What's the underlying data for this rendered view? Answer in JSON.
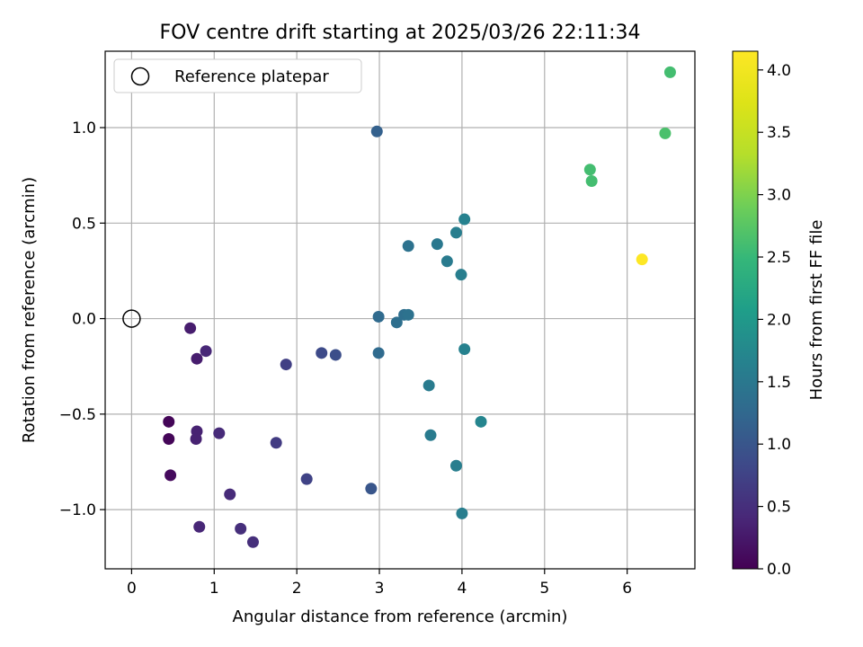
{
  "chart_data": {
    "type": "scatter",
    "title": "FOV centre drift starting at 2025/03/26 22:11:34",
    "xlabel": "Angular distance from reference (arcmin)",
    "ylabel": "Rotation from reference (arcmin)",
    "xlim": [
      -0.32,
      6.82
    ],
    "ylim": [
      -1.31,
      1.4
    ],
    "xticks": [
      "0",
      "1",
      "2",
      "3",
      "4",
      "5",
      "6"
    ],
    "xtick_values": [
      0,
      1,
      2,
      3,
      4,
      5,
      6
    ],
    "yticks": [
      "−1.0",
      "−0.5",
      "0.0",
      "0.5",
      "1.0"
    ],
    "ytick_values": [
      -1.0,
      -0.5,
      0.0,
      0.5,
      1.0
    ],
    "grid": true,
    "legend": {
      "position": "top-left",
      "label": "Reference platepar"
    },
    "reference_point": {
      "x": 0,
      "y": 0
    },
    "colorbar": {
      "label": "Hours from first FF file",
      "range": [
        0,
        4.15
      ],
      "ticks": [
        "0.0",
        "0.5",
        "1.0",
        "1.5",
        "2.0",
        "2.5",
        "3.0",
        "3.5",
        "4.0"
      ],
      "tick_values": [
        0,
        0.5,
        1.0,
        1.5,
        2.0,
        2.5,
        3.0,
        3.5,
        4.0
      ],
      "colormap": "viridis"
    },
    "points": [
      {
        "x": 0.45,
        "y": -0.54,
        "c": 0.05
      },
      {
        "x": 0.45,
        "y": -0.63,
        "c": 0.05
      },
      {
        "x": 0.47,
        "y": -0.82,
        "c": 0.1
      },
      {
        "x": 0.71,
        "y": -0.05,
        "c": 0.3
      },
      {
        "x": 0.79,
        "y": -0.21,
        "c": 0.3
      },
      {
        "x": 0.79,
        "y": -0.59,
        "c": 0.35
      },
      {
        "x": 0.78,
        "y": -0.63,
        "c": 0.35
      },
      {
        "x": 0.82,
        "y": -1.09,
        "c": 0.4
      },
      {
        "x": 0.9,
        "y": -0.17,
        "c": 0.4
      },
      {
        "x": 1.06,
        "y": -0.6,
        "c": 0.45
      },
      {
        "x": 1.19,
        "y": -0.92,
        "c": 0.45
      },
      {
        "x": 1.32,
        "y": -1.1,
        "c": 0.5
      },
      {
        "x": 1.47,
        "y": -1.17,
        "c": 0.5
      },
      {
        "x": 1.75,
        "y": -0.65,
        "c": 0.65
      },
      {
        "x": 1.87,
        "y": -0.24,
        "c": 0.7
      },
      {
        "x": 2.12,
        "y": -0.84,
        "c": 0.75
      },
      {
        "x": 2.3,
        "y": -0.18,
        "c": 0.85
      },
      {
        "x": 2.47,
        "y": -0.19,
        "c": 0.9
      },
      {
        "x": 2.9,
        "y": -0.89,
        "c": 1.0
      },
      {
        "x": 2.97,
        "y": 0.98,
        "c": 1.15
      },
      {
        "x": 2.99,
        "y": 0.01,
        "c": 1.3
      },
      {
        "x": 2.99,
        "y": -0.18,
        "c": 1.3
      },
      {
        "x": 3.21,
        "y": -0.02,
        "c": 1.35
      },
      {
        "x": 3.3,
        "y": 0.02,
        "c": 1.35
      },
      {
        "x": 3.35,
        "y": 0.02,
        "c": 1.4
      },
      {
        "x": 3.35,
        "y": 0.38,
        "c": 1.4
      },
      {
        "x": 3.6,
        "y": -0.35,
        "c": 1.55
      },
      {
        "x": 3.62,
        "y": -0.61,
        "c": 1.55
      },
      {
        "x": 3.7,
        "y": 0.39,
        "c": 1.5
      },
      {
        "x": 3.82,
        "y": 0.3,
        "c": 1.55
      },
      {
        "x": 3.93,
        "y": 0.45,
        "c": 1.6
      },
      {
        "x": 3.93,
        "y": -0.77,
        "c": 1.6
      },
      {
        "x": 3.99,
        "y": 0.23,
        "c": 1.6
      },
      {
        "x": 4.0,
        "y": -1.02,
        "c": 1.6
      },
      {
        "x": 4.03,
        "y": -0.16,
        "c": 1.65
      },
      {
        "x": 4.03,
        "y": 0.52,
        "c": 1.65
      },
      {
        "x": 4.23,
        "y": -0.54,
        "c": 1.7
      },
      {
        "x": 5.55,
        "y": 0.78,
        "c": 2.6
      },
      {
        "x": 5.57,
        "y": 0.72,
        "c": 2.6
      },
      {
        "x": 6.18,
        "y": 0.31,
        "c": 4.15
      },
      {
        "x": 6.46,
        "y": 0.97,
        "c": 2.65
      },
      {
        "x": 6.52,
        "y": 1.29,
        "c": 2.6
      }
    ]
  }
}
